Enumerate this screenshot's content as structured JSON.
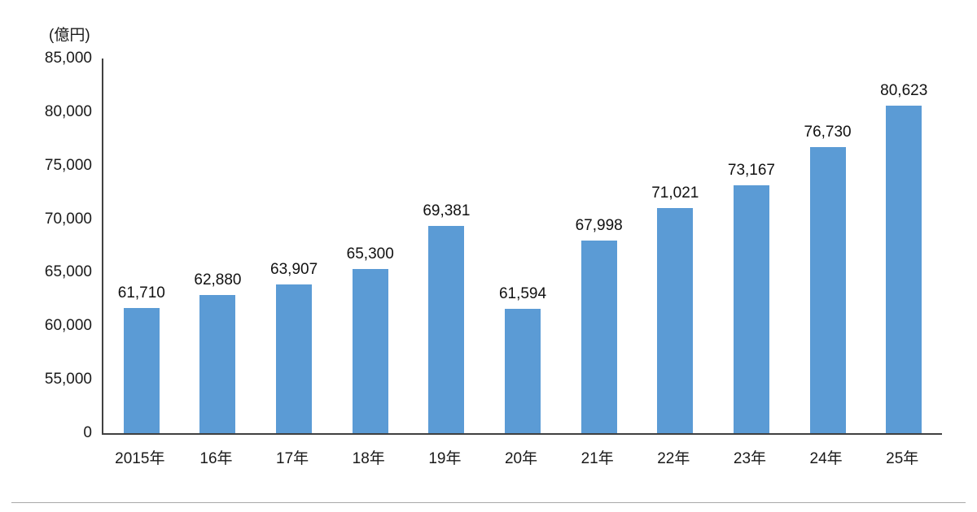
{
  "chart_data": {
    "type": "bar",
    "title": "",
    "xlabel": "",
    "ylabel": "(億円)",
    "categories": [
      "2015年",
      "16年",
      "17年",
      "18年",
      "19年",
      "20年",
      "21年",
      "22年",
      "23年",
      "24年",
      "25年"
    ],
    "values": [
      61710,
      62880,
      63907,
      65300,
      69381,
      61594,
      67998,
      71021,
      73167,
      76730,
      80623
    ],
    "value_labels": [
      "61,710",
      "62,880",
      "63,907",
      "65,300",
      "69,381",
      "61,594",
      "67,998",
      "71,021",
      "73,167",
      "76,730",
      "80,623"
    ],
    "yticks": [
      0,
      55000,
      60000,
      65000,
      70000,
      75000,
      80000,
      85000
    ],
    "ytick_labels": [
      "0",
      "55,000",
      "60,000",
      "65,000",
      "70,000",
      "75,000",
      "80,000",
      "85,000"
    ],
    "axis_break_between_zero_and_first_tick": true,
    "ylim": [
      0,
      85000
    ],
    "grid": false,
    "legend_position": "none",
    "bar_color": "#5B9BD5",
    "axis_color": "#404040"
  }
}
